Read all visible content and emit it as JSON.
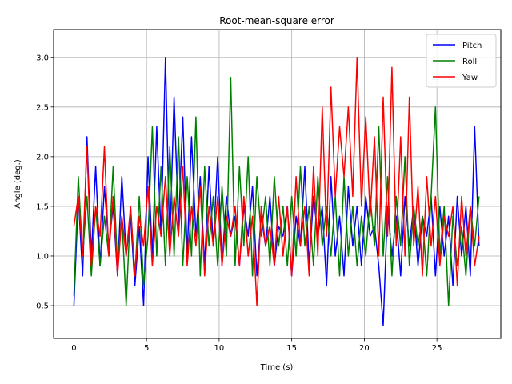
{
  "chart_data": {
    "type": "line",
    "title": "Root-mean-square error",
    "xlabel": "Time (s)",
    "ylabel": "Angle (deg.)",
    "xlim": [
      -1.4,
      29.4
    ],
    "ylim": [
      0.17,
      3.28
    ],
    "xticks": [
      0,
      5,
      10,
      15,
      20,
      25
    ],
    "yticks": [
      0.5,
      1.0,
      1.5,
      2.0,
      2.5,
      3.0
    ],
    "grid": true,
    "legend_position": "top-right",
    "series": [
      {
        "name": "Pitch",
        "color": "#0000ff",
        "x": [
          0.0,
          0.3,
          0.6,
          0.9,
          1.2,
          1.5,
          1.8,
          2.1,
          2.4,
          2.7,
          3.0,
          3.3,
          3.6,
          3.9,
          4.2,
          4.5,
          4.8,
          5.1,
          5.4,
          5.7,
          6.0,
          6.3,
          6.6,
          6.9,
          7.2,
          7.5,
          7.8,
          8.1,
          8.4,
          8.7,
          9.0,
          9.3,
          9.6,
          9.9,
          10.2,
          10.5,
          10.8,
          11.1,
          11.4,
          11.7,
          12.0,
          12.3,
          12.6,
          12.9,
          13.2,
          13.5,
          13.8,
          14.1,
          14.4,
          14.7,
          15.0,
          15.3,
          15.6,
          15.9,
          16.2,
          16.5,
          16.8,
          17.1,
          17.4,
          17.7,
          18.0,
          18.3,
          18.6,
          18.9,
          19.2,
          19.5,
          19.8,
          20.1,
          20.4,
          20.7,
          21.0,
          21.3,
          21.6,
          21.9,
          22.2,
          22.5,
          22.8,
          23.1,
          23.4,
          23.7,
          24.0,
          24.3,
          24.6,
          24.9,
          25.2,
          25.5,
          25.8,
          26.1,
          26.4,
          26.7,
          27.0,
          27.3,
          27.6,
          27.9
        ],
        "y": [
          0.5,
          1.6,
          0.8,
          2.2,
          1.0,
          1.9,
          0.9,
          1.7,
          1.1,
          1.5,
          0.8,
          1.8,
          1.0,
          1.4,
          0.7,
          1.3,
          0.5,
          2.0,
          1.0,
          2.3,
          1.2,
          3.0,
          1.1,
          2.6,
          1.3,
          2.4,
          1.0,
          2.2,
          1.2,
          1.8,
          0.9,
          1.9,
          1.1,
          2.0,
          0.9,
          1.6,
          1.2,
          1.4,
          0.9,
          1.5,
          1.2,
          1.7,
          0.8,
          1.4,
          1.1,
          1.6,
          0.9,
          1.3,
          1.2,
          1.5,
          0.8,
          1.4,
          1.1,
          1.9,
          0.9,
          1.6,
          1.2,
          1.5,
          0.7,
          1.8,
          1.0,
          1.4,
          0.8,
          1.7,
          1.1,
          1.5,
          0.9,
          1.6,
          1.2,
          1.3,
          0.9,
          0.3,
          1.5,
          1.0,
          1.4,
          0.8,
          1.6,
          1.1,
          1.5,
          0.9,
          1.4,
          1.2,
          1.6,
          0.8,
          1.5,
          1.0,
          1.4,
          0.7,
          1.6,
          1.0,
          1.5,
          0.8,
          2.3,
          1.1
        ]
      },
      {
        "name": "Roll",
        "color": "#008000",
        "x": [
          0.0,
          0.3,
          0.6,
          0.9,
          1.2,
          1.5,
          1.8,
          2.1,
          2.4,
          2.7,
          3.0,
          3.3,
          3.6,
          3.9,
          4.2,
          4.5,
          4.8,
          5.1,
          5.4,
          5.7,
          6.0,
          6.3,
          6.6,
          6.9,
          7.2,
          7.5,
          7.8,
          8.1,
          8.4,
          8.7,
          9.0,
          9.3,
          9.6,
          9.9,
          10.2,
          10.5,
          10.8,
          11.1,
          11.4,
          11.7,
          12.0,
          12.3,
          12.6,
          12.9,
          13.2,
          13.5,
          13.8,
          14.1,
          14.4,
          14.7,
          15.0,
          15.3,
          15.6,
          15.9,
          16.2,
          16.5,
          16.8,
          17.1,
          17.4,
          17.7,
          18.0,
          18.3,
          18.6,
          18.9,
          19.2,
          19.5,
          19.8,
          20.1,
          20.4,
          20.7,
          21.0,
          21.3,
          21.6,
          21.9,
          22.2,
          22.5,
          22.8,
          23.1,
          23.4,
          23.7,
          24.0,
          24.3,
          24.6,
          24.9,
          25.2,
          25.5,
          25.8,
          26.1,
          26.4,
          26.7,
          27.0,
          27.3,
          27.6,
          27.9
        ],
        "y": [
          0.6,
          1.8,
          1.0,
          1.6,
          0.8,
          1.5,
          0.9,
          1.4,
          1.0,
          1.9,
          0.9,
          1.4,
          0.5,
          1.5,
          0.8,
          1.6,
          0.7,
          1.2,
          2.3,
          1.0,
          1.9,
          0.9,
          2.1,
          1.0,
          2.2,
          0.9,
          1.8,
          1.0,
          2.4,
          0.8,
          1.9,
          1.1,
          1.6,
          0.9,
          1.7,
          1.0,
          2.8,
          0.9,
          1.9,
          1.1,
          2.0,
          0.8,
          1.8,
          1.2,
          1.6,
          0.9,
          1.8,
          1.1,
          1.5,
          0.9,
          1.6,
          1.0,
          1.9,
          1.1,
          1.5,
          0.9,
          1.8,
          1.1,
          1.5,
          1.0,
          1.6,
          0.8,
          1.8,
          1.0,
          1.5,
          0.9,
          1.4,
          1.0,
          1.6,
          1.1,
          2.3,
          1.0,
          1.8,
          0.8,
          1.6,
          1.1,
          2.0,
          0.9,
          1.5,
          1.1,
          1.4,
          0.8,
          1.6,
          2.5,
          1.0,
          1.5,
          0.5,
          1.4,
          0.9,
          1.3,
          0.8,
          1.5,
          1.1,
          1.6
        ]
      },
      {
        "name": "Yaw",
        "color": "#ff0000",
        "x": [
          0.0,
          0.3,
          0.6,
          0.9,
          1.2,
          1.5,
          1.8,
          2.1,
          2.4,
          2.7,
          3.0,
          3.3,
          3.6,
          3.9,
          4.2,
          4.5,
          4.8,
          5.1,
          5.4,
          5.7,
          6.0,
          6.3,
          6.6,
          6.9,
          7.2,
          7.5,
          7.8,
          8.1,
          8.4,
          8.7,
          9.0,
          9.3,
          9.6,
          9.9,
          10.2,
          10.5,
          10.8,
          11.1,
          11.4,
          11.7,
          12.0,
          12.3,
          12.6,
          12.9,
          13.2,
          13.5,
          13.8,
          14.1,
          14.4,
          14.7,
          15.0,
          15.3,
          15.6,
          15.9,
          16.2,
          16.5,
          16.8,
          17.1,
          17.4,
          17.7,
          18.0,
          18.3,
          18.6,
          18.9,
          19.2,
          19.5,
          19.8,
          20.1,
          20.4,
          20.7,
          21.0,
          21.3,
          21.6,
          21.9,
          22.2,
          22.5,
          22.8,
          23.1,
          23.4,
          23.7,
          24.0,
          24.3,
          24.6,
          24.9,
          25.2,
          25.5,
          25.8,
          26.1,
          26.4,
          26.7,
          27.0,
          27.3,
          27.6,
          27.9
        ],
        "y": [
          1.3,
          1.6,
          1.0,
          2.1,
          0.9,
          1.5,
          1.2,
          2.1,
          1.0,
          1.6,
          0.8,
          1.4,
          1.0,
          1.5,
          0.8,
          1.4,
          1.1,
          1.7,
          0.9,
          1.5,
          1.2,
          1.8,
          1.0,
          1.6,
          1.2,
          1.9,
          0.9,
          1.5,
          1.1,
          1.7,
          0.8,
          1.5,
          1.1,
          1.6,
          0.9,
          1.4,
          1.2,
          1.5,
          0.9,
          1.6,
          1.0,
          1.4,
          0.5,
          1.5,
          1.1,
          1.3,
          0.9,
          1.6,
          1.0,
          1.5,
          0.8,
          1.8,
          1.1,
          1.5,
          0.8,
          1.9,
          1.0,
          2.5,
          1.2,
          2.7,
          1.6,
          2.3,
          1.8,
          2.5,
          1.6,
          3.0,
          1.5,
          2.4,
          1.4,
          2.2,
          1.0,
          2.6,
          1.2,
          2.9,
          1.1,
          2.2,
          1.0,
          2.6,
          1.1,
          1.7,
          0.8,
          1.8,
          1.1,
          1.6,
          0.9,
          1.4,
          1.2,
          1.5,
          0.7,
          1.6,
          1.0,
          1.5,
          0.9,
          1.2
        ]
      }
    ]
  }
}
